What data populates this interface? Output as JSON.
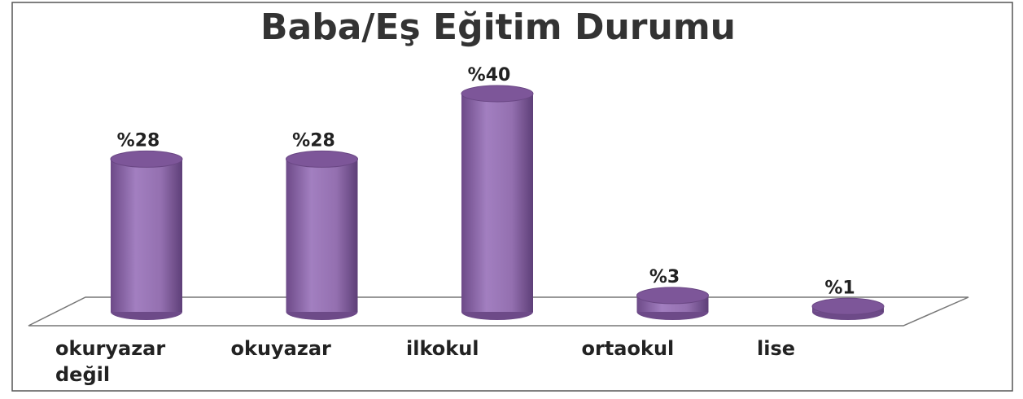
{
  "chart_data": {
    "type": "bar3d",
    "title": "Baba/Eş Eğitim Durumu",
    "categories": [
      "okuryazar değil",
      "okuyazar",
      "ilkokul",
      "ortaokul",
      "lise"
    ],
    "values": [
      28,
      28,
      40,
      3,
      1
    ],
    "value_labels": [
      "%28",
      "%28",
      "%40",
      "%3",
      "%1"
    ],
    "color": "#9470b0"
  }
}
